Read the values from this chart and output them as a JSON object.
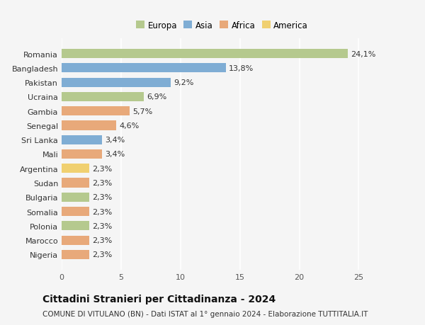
{
  "countries": [
    "Romania",
    "Bangladesh",
    "Pakistan",
    "Ucraina",
    "Gambia",
    "Senegal",
    "Sri Lanka",
    "Mali",
    "Argentina",
    "Sudan",
    "Bulgaria",
    "Somalia",
    "Polonia",
    "Marocco",
    "Nigeria"
  ],
  "values": [
    24.1,
    13.8,
    9.2,
    6.9,
    5.7,
    4.6,
    3.4,
    3.4,
    2.3,
    2.3,
    2.3,
    2.3,
    2.3,
    2.3,
    2.3
  ],
  "labels": [
    "24,1%",
    "13,8%",
    "9,2%",
    "6,9%",
    "5,7%",
    "4,6%",
    "3,4%",
    "3,4%",
    "2,3%",
    "2,3%",
    "2,3%",
    "2,3%",
    "2,3%",
    "2,3%",
    "2,3%"
  ],
  "regions": [
    "Europa",
    "Asia",
    "Asia",
    "Europa",
    "Africa",
    "Africa",
    "Asia",
    "Africa",
    "America",
    "Africa",
    "Europa",
    "Africa",
    "Europa",
    "Africa",
    "Africa"
  ],
  "region_colors": {
    "Europa": "#b5c98e",
    "Asia": "#7fadd4",
    "Africa": "#e8a97a",
    "America": "#f0d070"
  },
  "legend_order": [
    "Europa",
    "Asia",
    "Africa",
    "America"
  ],
  "title": "Cittadini Stranieri per Cittadinanza - 2024",
  "subtitle": "COMUNE DI VITULANO (BN) - Dati ISTAT al 1° gennaio 2024 - Elaborazione TUTTITALIA.IT",
  "xlim": [
    0,
    27
  ],
  "xticks": [
    0,
    5,
    10,
    15,
    20,
    25
  ],
  "background_color": "#f5f5f5",
  "grid_color": "#ffffff",
  "bar_height": 0.65,
  "title_fontsize": 10,
  "subtitle_fontsize": 7.5,
  "tick_fontsize": 8,
  "label_fontsize": 8,
  "legend_fontsize": 8.5
}
